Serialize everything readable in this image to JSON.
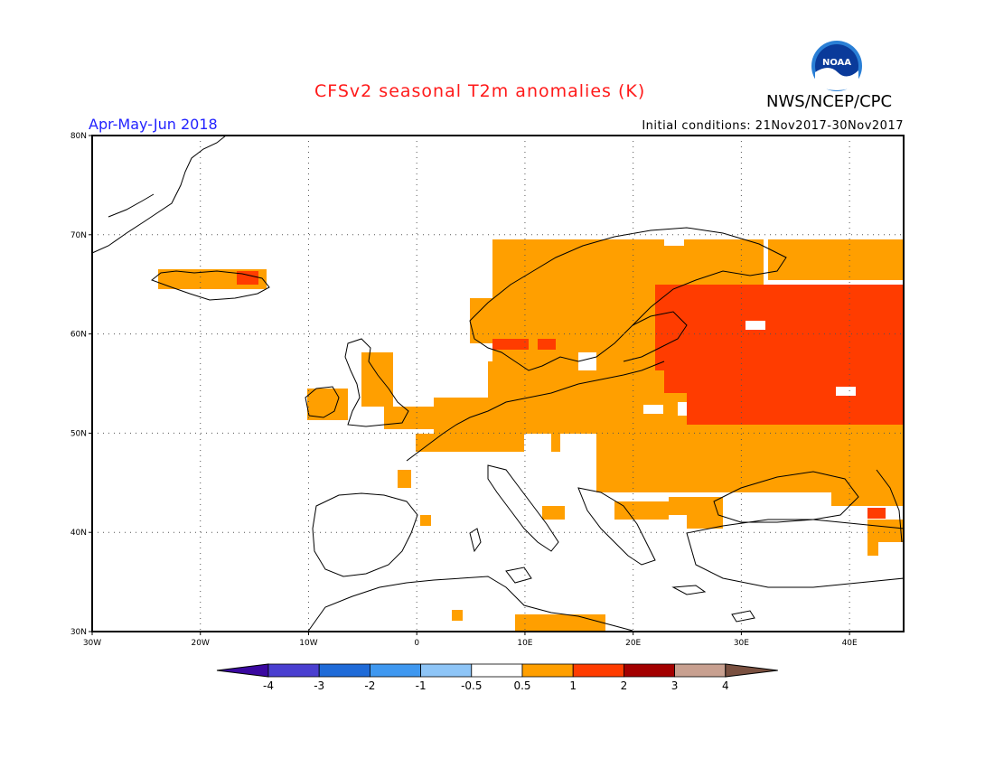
{
  "title": "CFSv2 seasonal T2m anomalies (K)",
  "organization": "NWS/NCEP/CPC",
  "logo_text": "NOAA",
  "season": "Apr-May-Jun 2018",
  "initial_conditions": "Initial conditions: 21Nov2017-30Nov2017",
  "map": {
    "lon_range": [
      -30,
      45
    ],
    "lat_range": [
      30,
      80
    ],
    "lon_ticks": [
      "30W",
      "20W",
      "10W",
      "0",
      "10E",
      "20E",
      "30E",
      "40E"
    ],
    "lat_ticks": [
      "30N",
      "40N",
      "50N",
      "60N",
      "70N",
      "80N"
    ],
    "grid": "dotted"
  },
  "colorbar": {
    "labels": [
      "-4",
      "-3",
      "-2",
      "-1",
      "-0.5",
      "0.5",
      "1",
      "2",
      "3",
      "4"
    ],
    "colors": [
      "#3a08a0",
      "#4a3fd0",
      "#1f6bd8",
      "#3f98f0",
      "#8ec5f7",
      "#ffffff",
      "#ff9f00",
      "#ff3c00",
      "#a30000",
      "#c8a090",
      "#7a5040"
    ]
  },
  "anomaly_colors": {
    "warm": "#ff9f00",
    "hot": "#ff3c00"
  }
}
